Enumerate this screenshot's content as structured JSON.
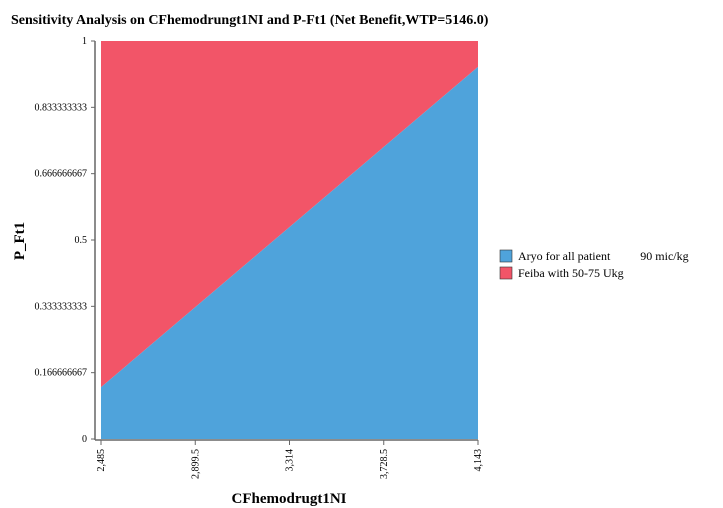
{
  "chart_data": {
    "type": "area",
    "title": "Sensitivity Analysis on CFhemodrungt1NI and P-Ft1 (Net Benefit,WTP=5146.0)",
    "xlabel": "CFhemodrugt1NI",
    "ylabel": "P_Ft1",
    "xlim": [
      2485,
      4143
    ],
    "ylim": [
      0,
      1
    ],
    "x_ticks": [
      "2,485",
      "2,899.5",
      "3,314",
      "3,728.5",
      "4,143"
    ],
    "y_ticks": [
      "0",
      "0.166666667",
      "0.333333333",
      "0.5",
      "0.666666667",
      "0.833333333",
      "1"
    ],
    "boundary": {
      "x": [
        2485,
        4143
      ],
      "y": [
        0.13,
        0.935
      ]
    },
    "series": [
      {
        "name": "Aryo for all patient          90 mic/kg",
        "color": "#4fa3db",
        "region": "below"
      },
      {
        "name": "Feiba with 50-75 Ukg",
        "color": "#f25568",
        "region": "above"
      }
    ],
    "legend": "right"
  }
}
